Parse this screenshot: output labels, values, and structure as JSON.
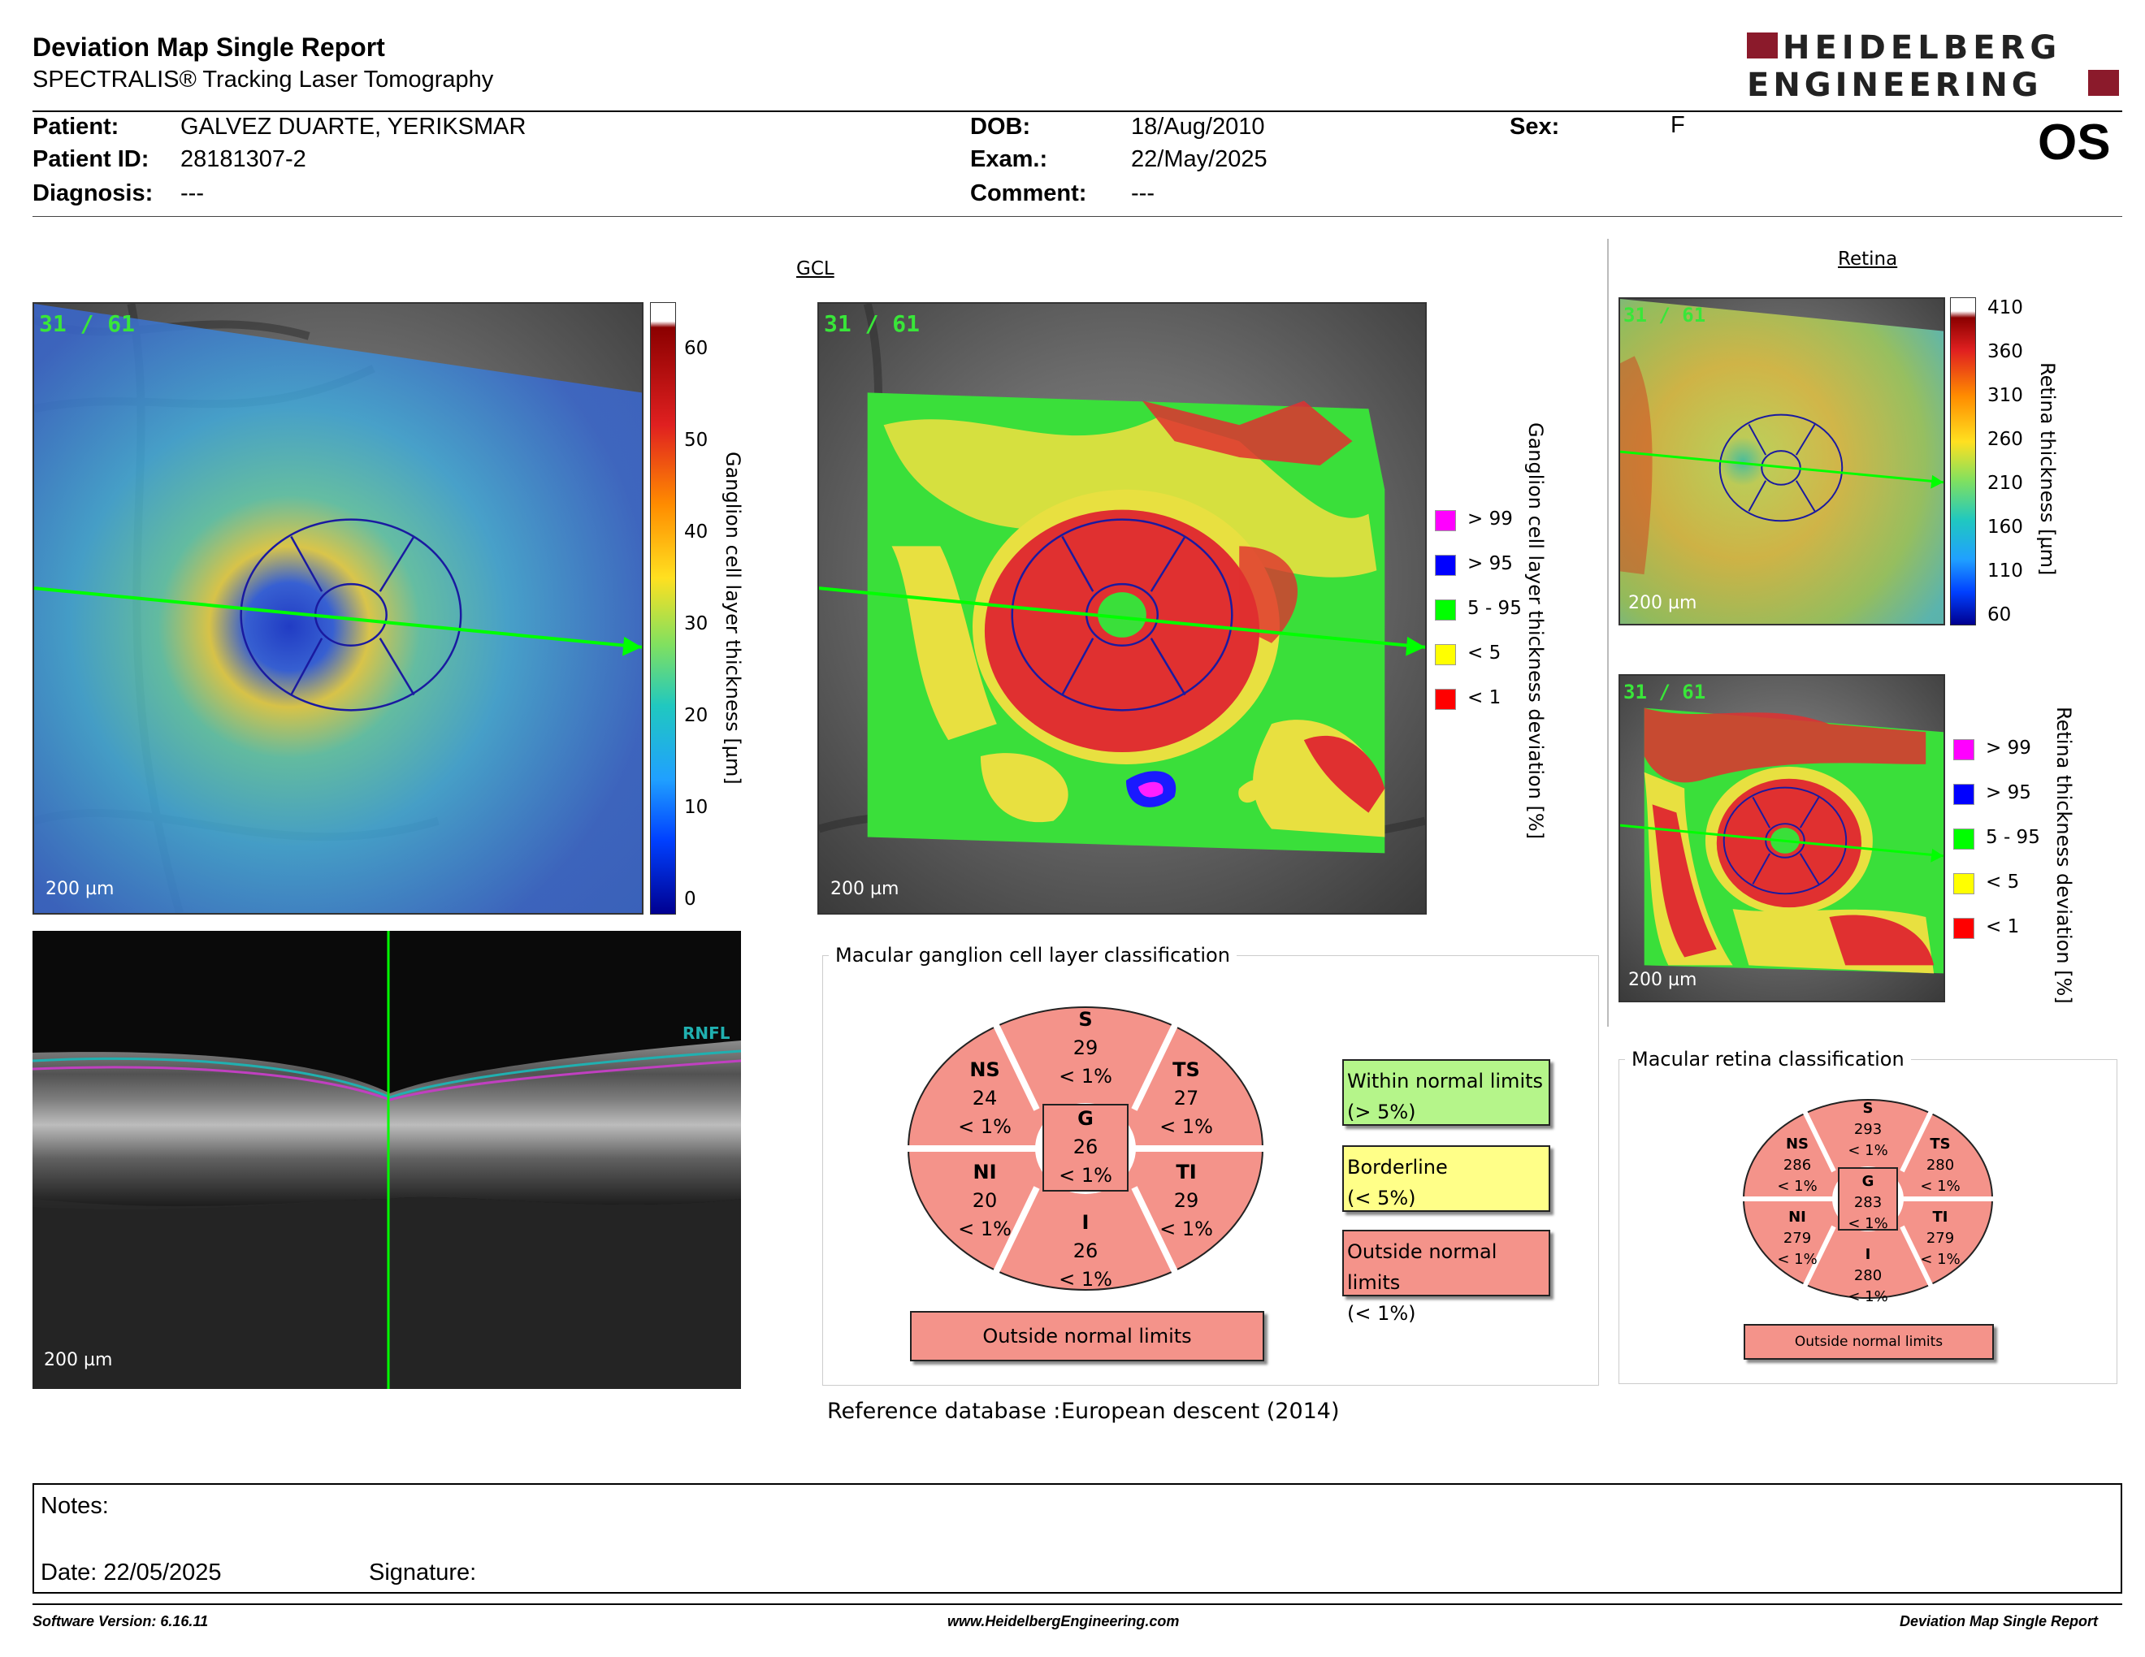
{
  "header": {
    "title": "Deviation Map Single Report",
    "subtitle": "SPECTRALIS® Tracking Laser Tomography",
    "logo_line1": "HEIDELBERG",
    "logo_line2": "ENGINEERING",
    "eye": "OS"
  },
  "patient": {
    "patient_label": "Patient:",
    "patient_value": "GALVEZ DUARTE, YERIKSMAR",
    "id_label": "Patient ID:",
    "id_value": "28181307-2",
    "diag_label": "Diagnosis:",
    "diag_value": "---",
    "dob_label": "DOB:",
    "dob_value": "18/Aug/2010",
    "exam_label": "Exam.:",
    "exam_value": "22/May/2025",
    "comment_label": "Comment:",
    "comment_value": "---",
    "sex_label": "Sex:",
    "sex_value": "F"
  },
  "gcl_section": {
    "heading": "GCL",
    "counter": "31 / 61",
    "scale": "200 µm",
    "thickness_axis_label": "Ganglion cell layer thickness [µm]",
    "thickness_ticks": [
      "60",
      "50",
      "40",
      "30",
      "20",
      "10",
      "0"
    ],
    "deviation_axis_label": "Ganglion cell layer thickness deviation [%]"
  },
  "deviation_legend": [
    {
      "label": "> 99",
      "color": "#ff00ff"
    },
    {
      "label": "> 95",
      "color": "#0000ff"
    },
    {
      "label": "5 - 95",
      "color": "#00ff00"
    },
    {
      "label": "< 5",
      "color": "#ffff00"
    },
    {
      "label": "< 1",
      "color": "#ff0000"
    }
  ],
  "bscan": {
    "scale": "200 µm",
    "layer_label": "RNFL"
  },
  "retina_section": {
    "heading": "Retina",
    "counter": "31 / 61",
    "scale": "200 µm",
    "thickness_axis_label": "Retina thickness [µm]",
    "thickness_ticks": [
      "410",
      "360",
      "310",
      "260",
      "210",
      "160",
      "110",
      "60"
    ],
    "deviation_axis_label": "Retina thickness deviation [%]"
  },
  "gcl_classification": {
    "title": "Macular ganglion cell layer classification",
    "sectors": {
      "S": {
        "name": "S",
        "value": "29",
        "pct": "< 1%"
      },
      "NS": {
        "name": "NS",
        "value": "24",
        "pct": "< 1%"
      },
      "TS": {
        "name": "TS",
        "value": "27",
        "pct": "< 1%"
      },
      "G": {
        "name": "G",
        "value": "26",
        "pct": "< 1%"
      },
      "NI": {
        "name": "NI",
        "value": "20",
        "pct": "< 1%"
      },
      "TI": {
        "name": "TI",
        "value": "29",
        "pct": "< 1%"
      },
      "I": {
        "name": "I",
        "value": "26",
        "pct": "< 1%"
      }
    },
    "result": "Outside normal limits",
    "key": {
      "within_1": "Within normal limits",
      "within_2": "(> 5%)",
      "border_1": "Borderline",
      "border_2": "(< 5%)",
      "outside_1": "Outside normal limits",
      "outside_2": "(< 1%)"
    },
    "reference_label": "Reference database :",
    "reference_value": "European descent (2014)"
  },
  "retina_classification": {
    "title": "Macular retina classification",
    "sectors": {
      "S": {
        "name": "S",
        "value": "293",
        "pct": "< 1%"
      },
      "NS": {
        "name": "NS",
        "value": "286",
        "pct": "< 1%"
      },
      "TS": {
        "name": "TS",
        "value": "280",
        "pct": "< 1%"
      },
      "G": {
        "name": "G",
        "value": "283",
        "pct": "< 1%"
      },
      "NI": {
        "name": "NI",
        "value": "279",
        "pct": "< 1%"
      },
      "TI": {
        "name": "TI",
        "value": "279",
        "pct": "< 1%"
      },
      "I": {
        "name": "I",
        "value": "280",
        "pct": "< 1%"
      }
    },
    "result": "Outside normal limits"
  },
  "notes": {
    "notes_label": "Notes:",
    "date_label": "Date: 22/05/2025",
    "signature_label": "Signature:"
  },
  "footer": {
    "version": "Software Version: 6.16.11",
    "website": "www.HeidelbergEngineering.com",
    "report": "Deviation Map Single Report"
  },
  "colors": {
    "outside": "#f4938a",
    "borderline": "#ffff88",
    "within": "#b5f58a",
    "logo_red": "#8b1a2b",
    "scan_line": "#00ff00",
    "grid_line": "#1a1aa0"
  }
}
